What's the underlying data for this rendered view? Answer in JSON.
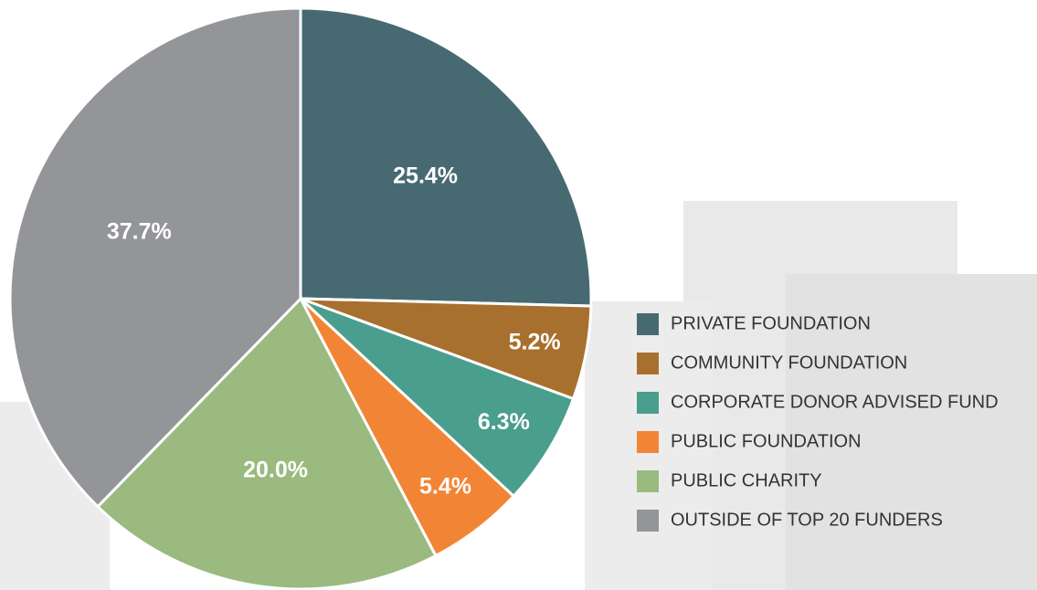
{
  "chart_data": {
    "type": "pie",
    "categories": [
      "PRIVATE FOUNDATION",
      "COMMUNITY FOUNDATION",
      "CORPORATE DONOR ADVISED FUND",
      "PUBLIC FOUNDATION",
      "PUBLIC CHARITY",
      "OUTSIDE OF TOP 20 FUNDERS"
    ],
    "values": [
      25.4,
      5.2,
      6.3,
      5.4,
      20.0,
      37.7
    ],
    "value_labels": [
      "25.4%",
      "5.2%",
      "6.3%",
      "5.4%",
      "20.0%",
      "37.7%"
    ],
    "colors": [
      "#476a72",
      "#a8702e",
      "#4a9e8e",
      "#f28535",
      "#9aba80",
      "#939598"
    ]
  }
}
